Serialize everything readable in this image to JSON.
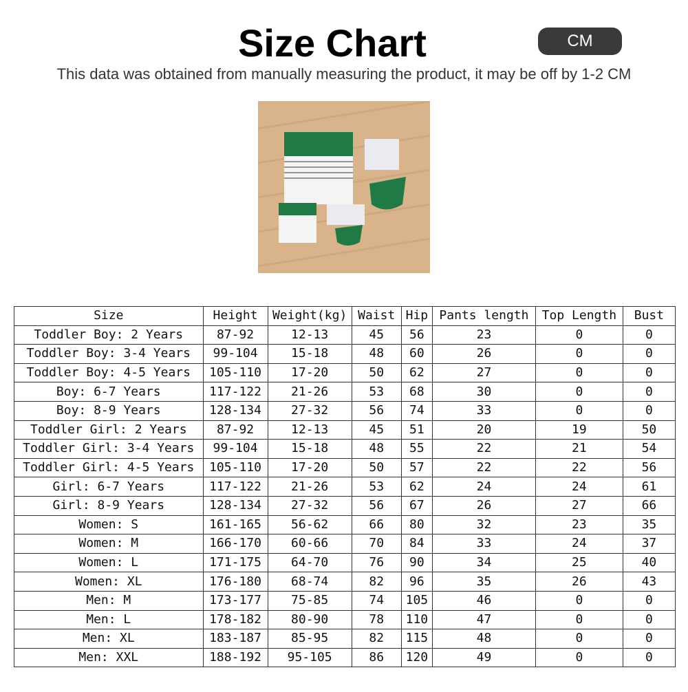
{
  "header": {
    "title": "Size Chart",
    "unit": "CM",
    "subtitle": "This data was obtained from manually measuring the product, it may be off by 1-2 CM"
  },
  "table": {
    "columns": [
      "Size",
      "Height",
      "Weight(kg)",
      "Waist",
      "Hip",
      "Pants length",
      "Top Length",
      "Bust"
    ],
    "rows": [
      [
        "Toddler Boy: 2 Years",
        "87-92",
        "12-13",
        "45",
        "56",
        "23",
        "0",
        "0"
      ],
      [
        "Toddler Boy: 3-4 Years",
        "99-104",
        "15-18",
        "48",
        "60",
        "26",
        "0",
        "0"
      ],
      [
        "Toddler Boy: 4-5 Years",
        "105-110",
        "17-20",
        "50",
        "62",
        "27",
        "0",
        "0"
      ],
      [
        "Boy: 6-7 Years",
        "117-122",
        "21-26",
        "53",
        "68",
        "30",
        "0",
        "0"
      ],
      [
        "Boy: 8-9 Years",
        "128-134",
        "27-32",
        "56",
        "74",
        "33",
        "0",
        "0"
      ],
      [
        "Toddler Girl: 2 Years",
        "87-92",
        "12-13",
        "45",
        "51",
        "20",
        "19",
        "50"
      ],
      [
        "Toddler Girl: 3-4 Years",
        "99-104",
        "15-18",
        "48",
        "55",
        "22",
        "21",
        "54"
      ],
      [
        "Toddler Girl: 4-5 Years",
        "105-110",
        "17-20",
        "50",
        "57",
        "22",
        "22",
        "56"
      ],
      [
        "Girl: 6-7 Years",
        "117-122",
        "21-26",
        "53",
        "62",
        "24",
        "24",
        "61"
      ],
      [
        "Girl: 8-9 Years",
        "128-134",
        "27-32",
        "56",
        "67",
        "26",
        "27",
        "66"
      ],
      [
        "Women: S",
        "161-165",
        "56-62",
        "66",
        "80",
        "32",
        "23",
        "35"
      ],
      [
        "Women: M",
        "166-170",
        "60-66",
        "70",
        "84",
        "33",
        "24",
        "37"
      ],
      [
        "Women: L",
        "171-175",
        "64-70",
        "76",
        "90",
        "34",
        "25",
        "40"
      ],
      [
        "Women: XL",
        "176-180",
        "68-74",
        "82",
        "96",
        "35",
        "26",
        "43"
      ],
      [
        "Men: M",
        "173-177",
        "75-85",
        "74",
        "105",
        "46",
        "0",
        "0"
      ],
      [
        "Men: L",
        "178-182",
        "80-90",
        "78",
        "110",
        "47",
        "0",
        "0"
      ],
      [
        "Men: XL",
        "183-187",
        "85-95",
        "82",
        "115",
        "48",
        "0",
        "0"
      ],
      [
        "Men: XXL",
        "188-192",
        "95-105",
        "86",
        "120",
        "49",
        "0",
        "0"
      ]
    ]
  }
}
